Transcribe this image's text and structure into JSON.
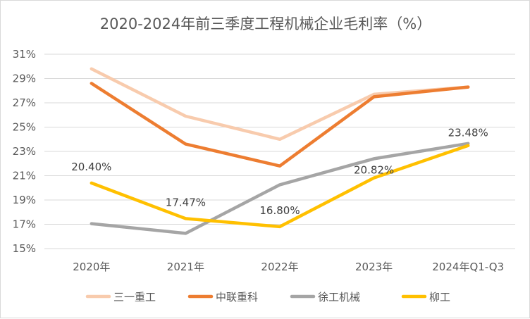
{
  "chart_data": {
    "type": "line",
    "title": "2020-2024年前三季度工程机械企业毛利率（%）",
    "xlabel": "",
    "ylabel": "",
    "categories": [
      "2020年",
      "2021年",
      "2022年",
      "2023年",
      "2024年Q1-Q3"
    ],
    "ylim": [
      15,
      31
    ],
    "yticks": [
      "15%",
      "17%",
      "19%",
      "21%",
      "23%",
      "25%",
      "27%",
      "29%",
      "31%"
    ],
    "grid": true,
    "legend_position": "bottom",
    "series": [
      {
        "name": "三一重工",
        "color": "#f8cbad",
        "values": [
          29.8,
          25.9,
          24.0,
          27.7,
          28.3
        ]
      },
      {
        "name": "中联重科",
        "color": "#ed7d31",
        "values": [
          28.6,
          23.6,
          21.8,
          27.5,
          28.3
        ]
      },
      {
        "name": "徐工机械",
        "color": "#a5a5a5",
        "values": [
          17.05,
          16.25,
          20.25,
          22.4,
          23.65
        ]
      },
      {
        "name": "柳工",
        "color": "#ffc000",
        "values": [
          20.4,
          17.47,
          16.8,
          20.82,
          23.48
        ]
      }
    ],
    "data_labels": [
      {
        "series": "柳工",
        "index": 0,
        "text": "20.40%"
      },
      {
        "series": "柳工",
        "index": 1,
        "text": "17.47%"
      },
      {
        "series": "柳工",
        "index": 2,
        "text": "16.80%"
      },
      {
        "series": "柳工",
        "index": 3,
        "text": "20.82%"
      },
      {
        "series": "柳工",
        "index": 4,
        "text": "23.48%"
      }
    ]
  }
}
